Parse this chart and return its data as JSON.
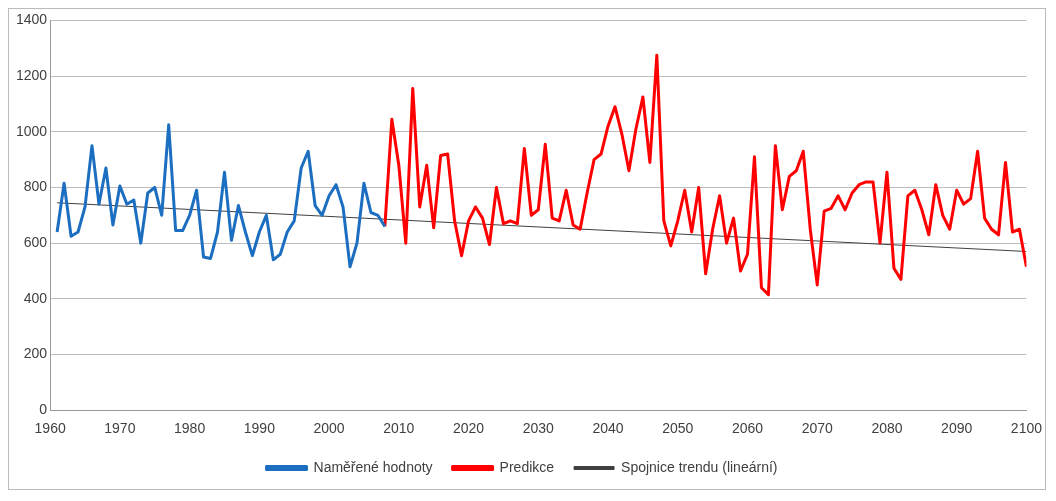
{
  "chart_data": {
    "type": "line",
    "xlim": [
      1960,
      2100
    ],
    "xticks": [
      1960,
      1970,
      1980,
      1990,
      2000,
      2010,
      2020,
      2030,
      2040,
      2050,
      2060,
      2070,
      2080,
      2090,
      2100
    ],
    "ylim": [
      0,
      1400
    ],
    "yticks": [
      0,
      200,
      400,
      600,
      800,
      1000,
      1200,
      1400
    ],
    "grid": "y",
    "legend": "bottom",
    "marker": "none",
    "series": [
      {
        "name": "Naměřené hodnoty",
        "color": "#1c6fc0",
        "x": [
          1961,
          1962,
          1963,
          1964,
          1965,
          1966,
          1967,
          1968,
          1969,
          1970,
          1971,
          1972,
          1973,
          1974,
          1975,
          1976,
          1977,
          1978,
          1979,
          1980,
          1981,
          1982,
          1983,
          1984,
          1985,
          1986,
          1987,
          1988,
          1989,
          1990,
          1991,
          1992,
          1993,
          1994,
          1995,
          1996,
          1997,
          1998,
          1999,
          2000,
          2001,
          2002,
          2003,
          2004,
          2005,
          2006,
          2007,
          2008
        ],
        "values": [
          640,
          815,
          625,
          640,
          730,
          950,
          740,
          870,
          665,
          805,
          740,
          755,
          600,
          780,
          800,
          700,
          1025,
          645,
          645,
          700,
          790,
          550,
          545,
          640,
          855,
          610,
          735,
          640,
          555,
          640,
          700,
          540,
          560,
          640,
          680,
          870,
          930,
          735,
          700,
          770,
          810,
          730,
          515,
          600,
          815,
          710,
          700,
          660
        ]
      },
      {
        "name": "Predikce",
        "color": "#ff0000",
        "x": [
          2008,
          2009,
          2010,
          2011,
          2012,
          2013,
          2014,
          2015,
          2016,
          2017,
          2018,
          2019,
          2020,
          2021,
          2022,
          2023,
          2024,
          2025,
          2026,
          2027,
          2028,
          2029,
          2030,
          2031,
          2032,
          2033,
          2034,
          2035,
          2036,
          2037,
          2038,
          2039,
          2040,
          2041,
          2042,
          2043,
          2044,
          2045,
          2046,
          2047,
          2048,
          2049,
          2050,
          2051,
          2052,
          2053,
          2054,
          2055,
          2056,
          2057,
          2058,
          2059,
          2060,
          2061,
          2062,
          2063,
          2064,
          2065,
          2066,
          2067,
          2068,
          2069,
          2070,
          2071,
          2072,
          2073,
          2074,
          2075,
          2076,
          2077,
          2078,
          2079,
          2080,
          2081,
          2082,
          2083,
          2084,
          2085,
          2086,
          2087,
          2088,
          2089,
          2090,
          2091,
          2092,
          2093,
          2094,
          2095,
          2096,
          2097,
          2098,
          2099,
          2100
        ],
        "values": [
          660,
          1045,
          880,
          600,
          1155,
          730,
          880,
          655,
          915,
          920,
          680,
          555,
          680,
          730,
          690,
          595,
          800,
          670,
          680,
          670,
          940,
          700,
          720,
          955,
          690,
          680,
          790,
          665,
          650,
          780,
          900,
          920,
          1020,
          1090,
          990,
          860,
          1010,
          1125,
          890,
          1275,
          680,
          590,
          680,
          790,
          640,
          800,
          490,
          650,
          770,
          600,
          690,
          500,
          560,
          910,
          440,
          415,
          950,
          720,
          840,
          860,
          930,
          650,
          450,
          715,
          725,
          770,
          720,
          780,
          810,
          820,
          820,
          600,
          855,
          510,
          470,
          770,
          790,
          720,
          630,
          810,
          700,
          650,
          790,
          740,
          760,
          930,
          690,
          650,
          630,
          890,
          640,
          650,
          515
        ]
      },
      {
        "name": "Spojnice trendu (lineární)",
        "color": "#404040",
        "x": [
          1961,
          2100
        ],
        "values": [
          745,
          570
        ]
      }
    ]
  }
}
